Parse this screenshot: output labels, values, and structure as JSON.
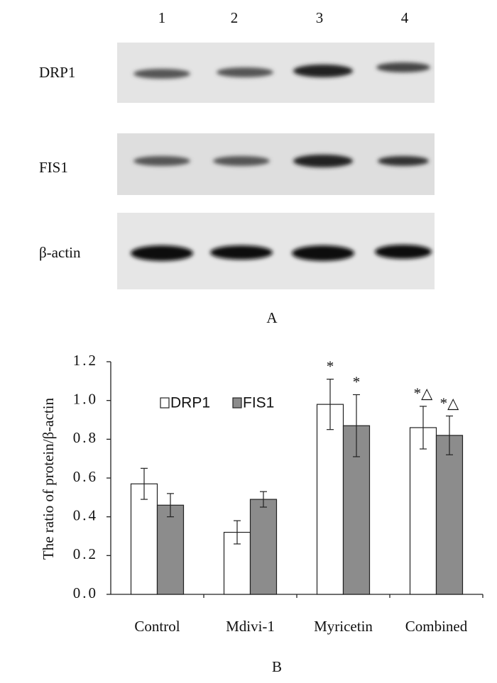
{
  "blot": {
    "lanes": [
      "1",
      "2",
      "3",
      "4"
    ],
    "rows": [
      "DRP1",
      "FIS1",
      "β-actin"
    ],
    "panel_label": "A"
  },
  "chart_data": {
    "type": "bar",
    "panel_label": "B",
    "y_label": "The ratio of protein/β-actin",
    "categories": [
      "Control",
      "Mdivi-1",
      "Myricetin",
      "Combined"
    ],
    "series": [
      {
        "name": "DRP1",
        "color": "#ffffff",
        "values": [
          0.57,
          0.32,
          0.98,
          0.86
        ],
        "errors": [
          0.08,
          0.06,
          0.13,
          0.11
        ],
        "markers": [
          null,
          null,
          "*",
          "*△"
        ]
      },
      {
        "name": "FIS1",
        "color": "#8c8c8c",
        "values": [
          0.46,
          0.49,
          0.87,
          0.82
        ],
        "errors": [
          0.06,
          0.04,
          0.16,
          0.1
        ],
        "markers": [
          null,
          null,
          "*",
          "*△"
        ]
      }
    ],
    "ylim": [
      0,
      1.2
    ],
    "yticks": [
      {
        "value": 0,
        "label": "0.0"
      },
      {
        "value": 0.2,
        "label": "0.2"
      },
      {
        "value": 0.4,
        "label": "0.4"
      },
      {
        "value": 0.6,
        "label": "0.6"
      },
      {
        "value": 0.8,
        "label": "0.8"
      },
      {
        "value": 1,
        "label": "1.0"
      },
      {
        "value": 1.2,
        "label": "1.2"
      }
    ],
    "legend": "upper-left"
  }
}
